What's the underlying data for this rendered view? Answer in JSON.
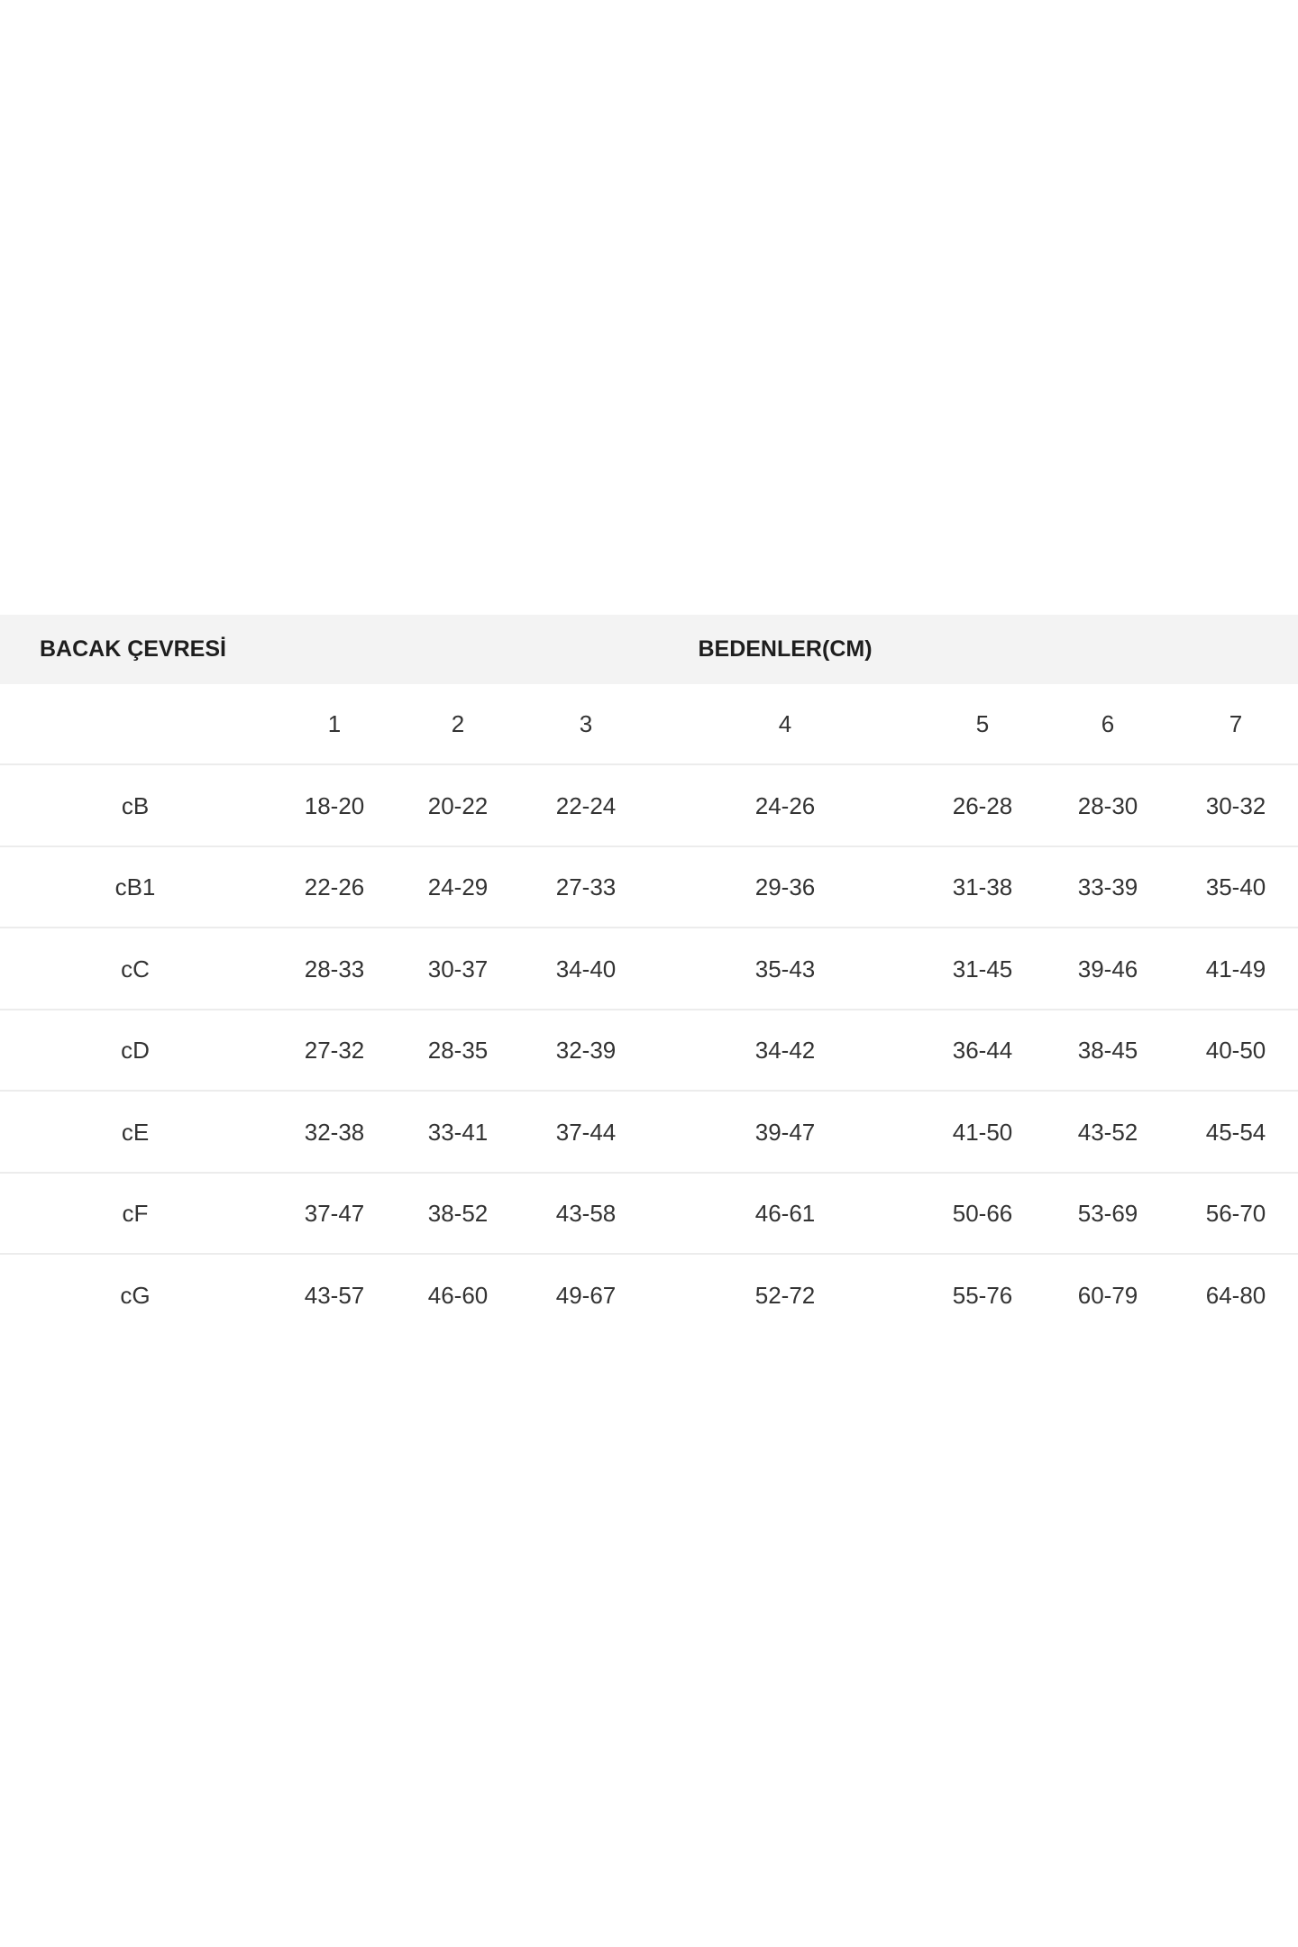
{
  "table": {
    "header": {
      "left": "BACAK ÇEVRESİ",
      "span": "BEDENLER(CM)"
    },
    "sizes": [
      "1",
      "2",
      "3",
      "4",
      "5",
      "6",
      "7"
    ],
    "rows": [
      {
        "label": "cB",
        "values": [
          "18-20",
          "20-22",
          "22-24",
          "24-26",
          "26-28",
          "28-30",
          "30-32"
        ]
      },
      {
        "label": "cB1",
        "values": [
          "22-26",
          "24-29",
          "27-33",
          "29-36",
          "31-38",
          "33-39",
          "35-40"
        ]
      },
      {
        "label": "cC",
        "values": [
          "28-33",
          "30-37",
          "34-40",
          "35-43",
          "31-45",
          "39-46",
          "41-49"
        ]
      },
      {
        "label": "cD",
        "values": [
          "27-32",
          "28-35",
          "32-39",
          "34-42",
          "36-44",
          "38-45",
          "40-50"
        ]
      },
      {
        "label": "cE",
        "values": [
          "32-38",
          "33-41",
          "37-44",
          "39-47",
          "41-50",
          "43-52",
          "45-54"
        ]
      },
      {
        "label": "cF",
        "values": [
          "37-47",
          "38-52",
          "43-58",
          "46-61",
          "50-66",
          "53-69",
          "56-70"
        ]
      },
      {
        "label": "cG",
        "values": [
          "43-57",
          "46-60",
          "49-67",
          "52-72",
          "55-76",
          "60-79",
          "64-80"
        ]
      }
    ]
  },
  "colors": {
    "header_bg": "#f3f3f3",
    "divider": "#ececec",
    "text": "#333333"
  }
}
